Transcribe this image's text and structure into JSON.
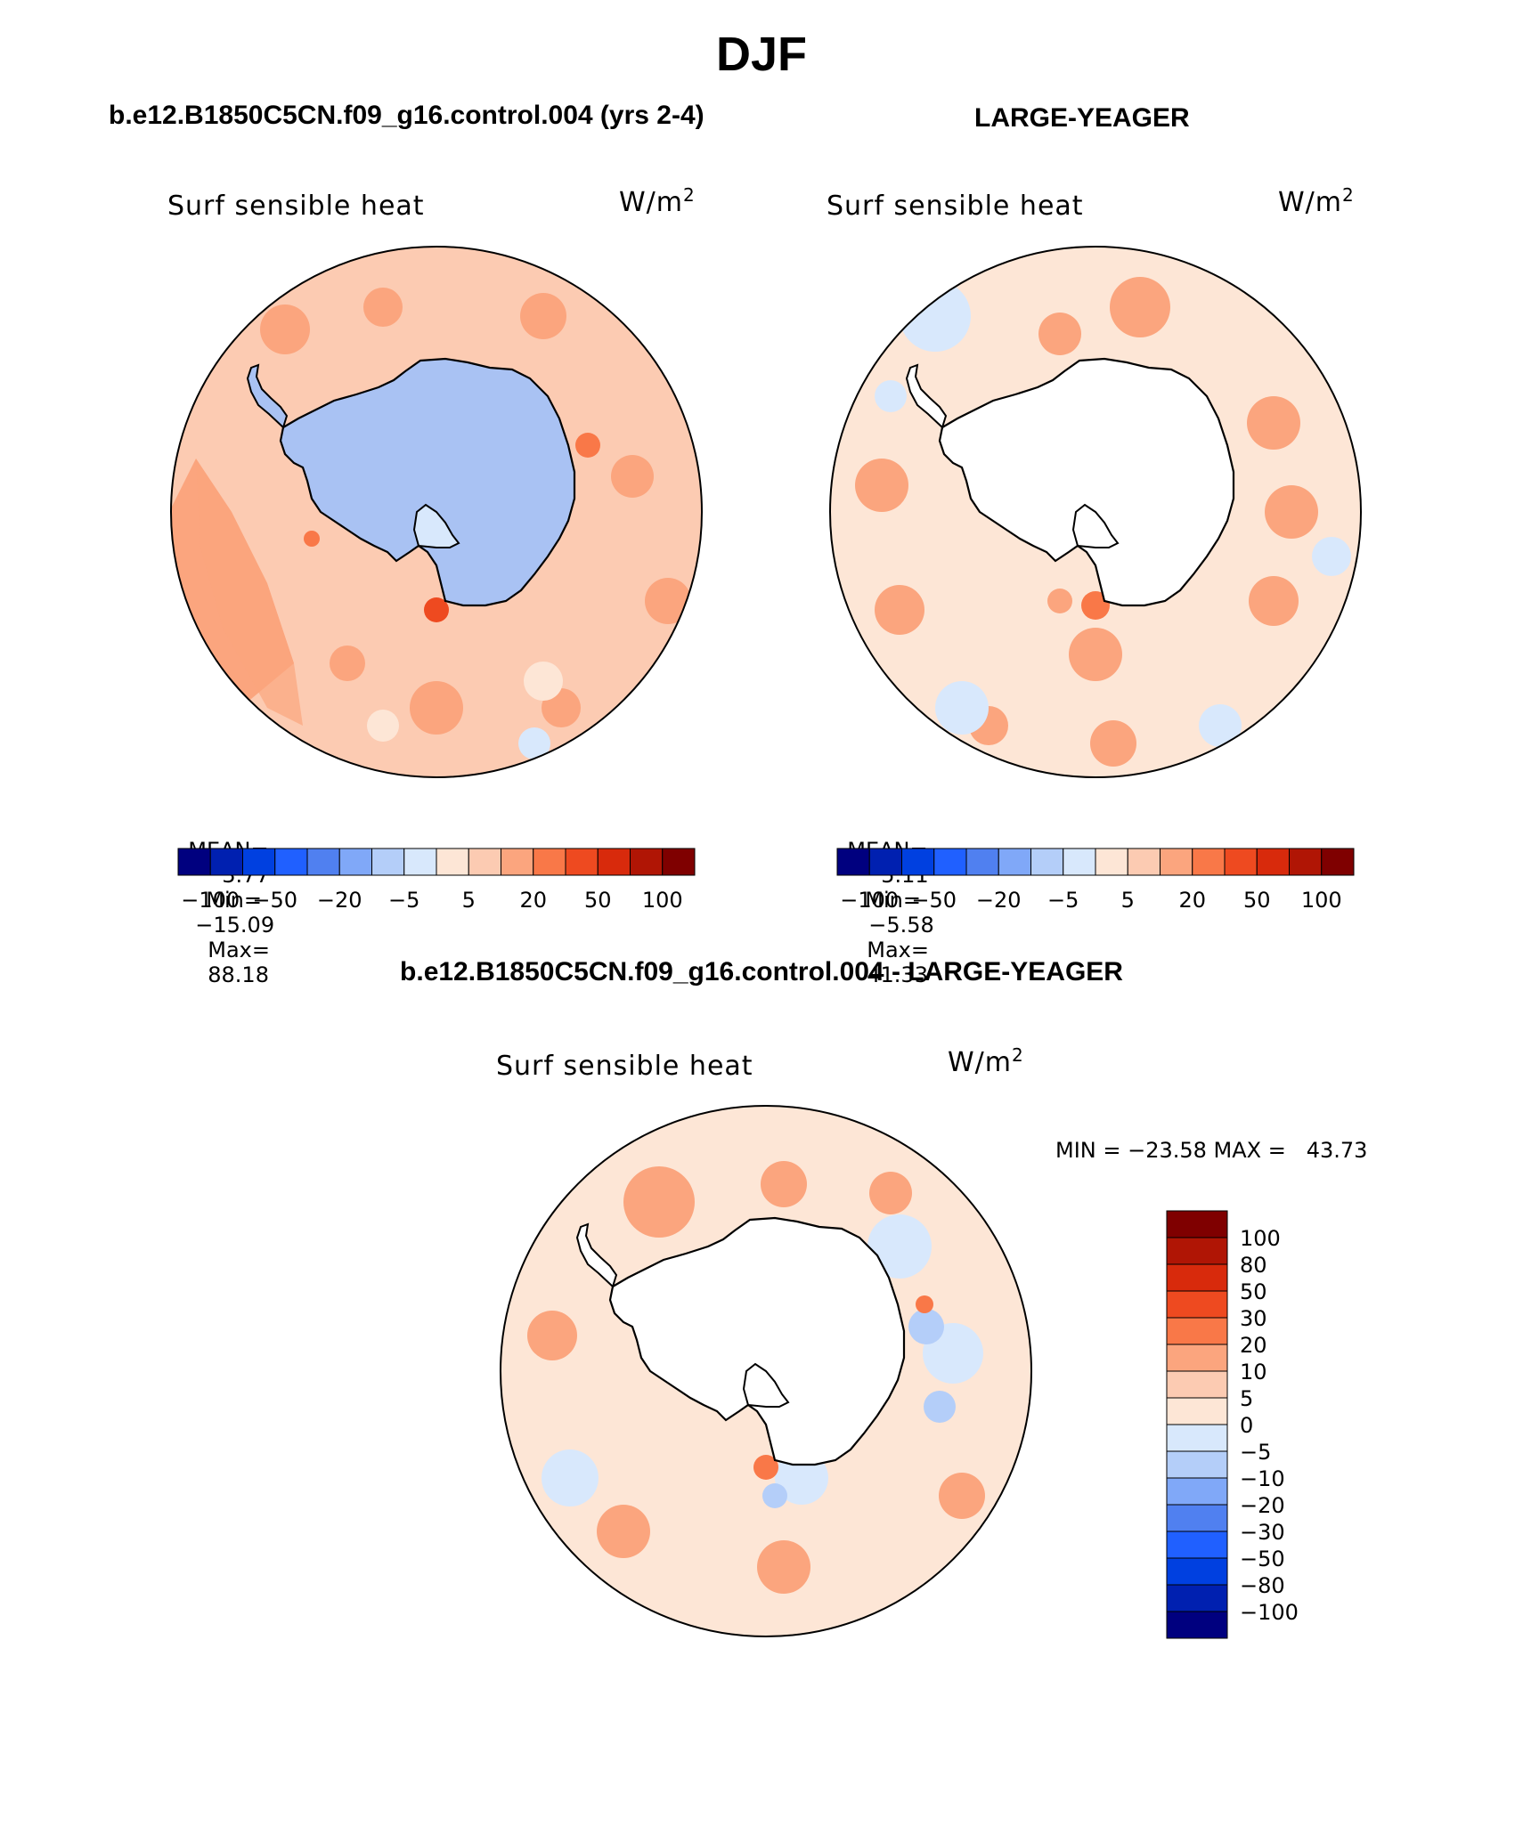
{
  "figure": {
    "season": "DJF",
    "left_title": "b.e12.B1850C5CN.f09_g16.control.004 (yrs 2-4)",
    "right_title": "LARGE-YEAGER",
    "diff_title": "b.e12.B1850C5CN.f09_g16.control.004 - LARGE-YEAGER"
  },
  "panels": {
    "left": {
      "variable": "Surf sensible heat",
      "units": "W/m",
      "units_sup": "2",
      "mean_label": "MEAN=",
      "mean_value": "3.77",
      "min_label": "Min=",
      "min_value": "−15.09",
      "max_label": "Max=",
      "max_value": "88.18",
      "continent_fill": "#a9c2f3"
    },
    "right": {
      "variable": "Surf sensible heat",
      "units": "W/m",
      "units_sup": "2",
      "mean_label": "MEAN=",
      "mean_value": "5.11",
      "min_label": "Min=",
      "min_value": "−5.58",
      "max_label": "Max=",
      "max_value": "41.33",
      "continent_fill": "#ffffff"
    },
    "diff": {
      "variable": "Surf sensible heat",
      "units": "W/m",
      "units_sup": "2",
      "minmax_text": "MIN = −23.58 MAX =   43.73",
      "continent_fill": "#ffffff"
    }
  },
  "colorbar_horizontal": {
    "colors": [
      "#00007f",
      "#0020b0",
      "#0040e0",
      "#2060ff",
      "#5080f0",
      "#80a8f8",
      "#b4cef9",
      "#d8e8fc",
      "#fde6d6",
      "#fccbb2",
      "#fba57e",
      "#f97848",
      "#ee4a20",
      "#d82a0c",
      "#b01505",
      "#7f0000"
    ],
    "labels": [
      "−100",
      "−50",
      "−20",
      "−5",
      "5",
      "20",
      "50",
      "100"
    ]
  },
  "colorbar_vertical": {
    "colors": [
      "#7f0000",
      "#b01505",
      "#d82a0c",
      "#ee4a20",
      "#f97848",
      "#fba57e",
      "#fccbb2",
      "#fde6d6",
      "#d8e8fc",
      "#b4cef9",
      "#80a8f8",
      "#5080f0",
      "#2060ff",
      "#0040e0",
      "#0020b0",
      "#00007f"
    ],
    "labels": [
      "100",
      "80",
      "50",
      "30",
      "20",
      "10",
      "5",
      "0",
      "−5",
      "−10",
      "−20",
      "−30",
      "−50",
      "−80",
      "−100"
    ]
  }
}
